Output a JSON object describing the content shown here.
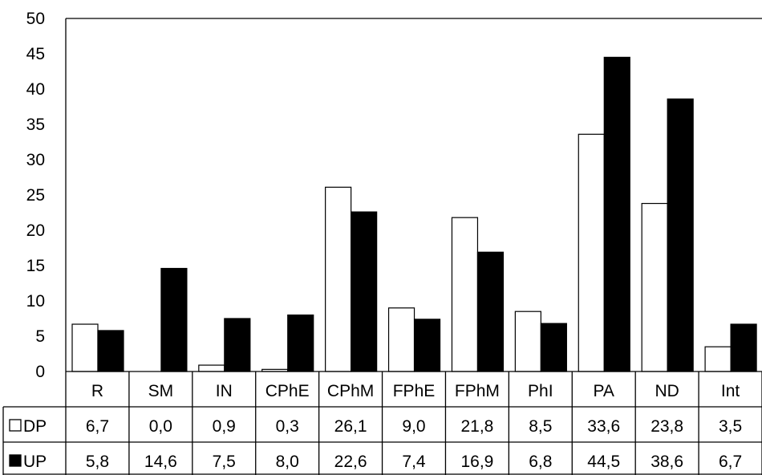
{
  "chart_data": {
    "type": "bar",
    "categories": [
      "R",
      "SM",
      "IN",
      "CPhE",
      "CPhM",
      "FPhE",
      "FPhM",
      "PhI",
      "PA",
      "ND",
      "Int"
    ],
    "series": [
      {
        "name": "DP",
        "color": "#ffffff",
        "values": [
          6.7,
          0.0,
          0.9,
          0.3,
          26.1,
          9.0,
          21.8,
          8.5,
          33.6,
          23.8,
          3.5
        ],
        "labels": [
          "6,7",
          "0,0",
          "0,9",
          "0,3",
          "26,1",
          "9,0",
          "21,8",
          "8,5",
          "33,6",
          "23,8",
          "3,5"
        ]
      },
      {
        "name": "UP",
        "color": "#000000",
        "values": [
          5.8,
          14.6,
          7.5,
          8.0,
          22.6,
          7.4,
          16.9,
          6.8,
          44.5,
          38.6,
          6.7
        ],
        "labels": [
          "5,8",
          "14,6",
          "7,5",
          "8,0",
          "22,6",
          "7,4",
          "16,9",
          "6,8",
          "44,5",
          "38,6",
          "6,7"
        ]
      }
    ],
    "yticks": [
      "0",
      "5",
      "10",
      "15",
      "20",
      "25",
      "30",
      "35",
      "40",
      "45",
      "50"
    ],
    "ylim": [
      0,
      50
    ],
    "legend": "data-table",
    "grid": false
  }
}
